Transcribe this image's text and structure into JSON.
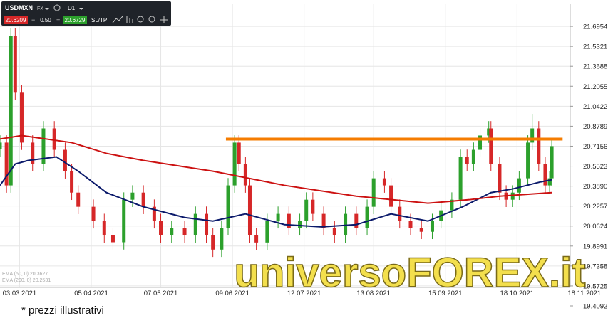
{
  "toolbar": {
    "symbol": "USDMXN",
    "market": "FX",
    "timeframe": "D1",
    "bid": "20.6209",
    "spread": "0.50",
    "ask": "20.6729",
    "sltp": "SL/TP"
  },
  "watermark": "universoFOREX.it",
  "footnote": "* prezzi illustrativi",
  "chart_data": {
    "type": "candlestick",
    "up_color": "#2ca02c",
    "down_color": "#d62728",
    "grid": true,
    "x": [
      -9,
      -6,
      -4,
      -2,
      1,
      6,
      11,
      16,
      21,
      24,
      27,
      34,
      39,
      43,
      48,
      52,
      57,
      62,
      65,
      70,
      76,
      81,
      86,
      89,
      93,
      96,
      99,
      101,
      104,
      106,
      109,
      114,
      119,
      124,
      129,
      132,
      135,
      140,
      145,
      150,
      155,
      160,
      163,
      168,
      171,
      175,
      180,
      185,
      190,
      194,
      199,
      203,
      206,
      209,
      212,
      216,
      217,
      221,
      224,
      227,
      230,
      234,
      236,
      239,
      242,
      244,
      245
    ],
    "open": [
      20.69,
      20.745,
      20.395,
      21.62,
      21.153,
      20.745,
      20.57,
      20.861,
      20.686,
      20.511,
      20.336,
      20.22,
      20.103,
      19.987,
      19.93,
      20.278,
      20.336,
      20.22,
      20.103,
      19.987,
      20.045,
      19.987,
      20.162,
      19.987,
      19.87,
      20.045,
      20.395,
      20.745,
      20.57,
      20.395,
      19.987,
      19.928,
      20.103,
      20.162,
      20.045,
      20.103,
      20.278,
      20.162,
      20.045,
      19.987,
      20.162,
      20.045,
      20.22,
      20.453,
      20.395,
      20.22,
      20.103,
      20.045,
      20.016,
      20.103,
      20.191,
      20.278,
      20.628,
      20.57,
      20.686,
      20.803,
      20.861,
      20.57,
      20.336,
      20.278,
      20.336,
      20.453,
      20.745,
      20.861,
      20.57,
      20.395,
      20.453
    ],
    "high": [
      20.805,
      20.805,
      21.68,
      21.68,
      21.213,
      20.805,
      20.921,
      20.921,
      20.746,
      20.571,
      20.396,
      20.28,
      20.163,
      20.047,
      20.338,
      20.396,
      20.396,
      20.28,
      20.163,
      20.105,
      20.105,
      20.222,
      20.222,
      20.047,
      20.105,
      20.455,
      20.805,
      20.805,
      20.63,
      20.455,
      20.047,
      20.163,
      20.222,
      20.222,
      20.163,
      20.338,
      20.338,
      20.222,
      20.105,
      20.222,
      20.222,
      20.28,
      20.513,
      20.513,
      20.455,
      20.28,
      20.163,
      20.105,
      20.163,
      20.251,
      20.338,
      20.688,
      20.688,
      20.746,
      20.863,
      20.921,
      20.921,
      20.63,
      20.396,
      20.396,
      20.513,
      20.805,
      20.98,
      20.921,
      20.63,
      20.513,
      20.776
    ],
    "low": [
      20.63,
      20.335,
      20.335,
      21.093,
      20.685,
      20.51,
      20.51,
      20.626,
      20.451,
      20.276,
      20.16,
      20.043,
      19.927,
      19.87,
      19.87,
      20.218,
      20.16,
      20.043,
      19.927,
      19.927,
      19.927,
      19.927,
      19.927,
      19.81,
      19.81,
      19.985,
      20.335,
      20.51,
      20.335,
      19.927,
      19.868,
      19.868,
      20.043,
      19.985,
      19.985,
      20.043,
      20.102,
      19.985,
      19.927,
      19.927,
      19.985,
      19.985,
      20.16,
      20.335,
      20.16,
      20.043,
      19.985,
      19.956,
      19.956,
      20.043,
      20.131,
      20.218,
      20.51,
      20.51,
      20.626,
      20.743,
      20.51,
      20.276,
      20.218,
      20.218,
      20.276,
      20.393,
      20.685,
      20.51,
      20.335,
      20.335,
      20.393
    ],
    "close": [
      20.745,
      20.395,
      21.62,
      21.153,
      20.745,
      20.57,
      20.861,
      20.686,
      20.511,
      20.336,
      20.22,
      20.103,
      19.987,
      19.93,
      20.278,
      20.336,
      20.22,
      20.103,
      19.987,
      20.045,
      19.987,
      20.162,
      19.987,
      19.87,
      20.045,
      20.395,
      20.745,
      20.57,
      20.395,
      19.987,
      19.928,
      20.103,
      20.162,
      20.045,
      20.103,
      20.278,
      20.162,
      20.045,
      19.987,
      20.162,
      20.045,
      20.22,
      20.453,
      20.395,
      20.22,
      20.103,
      20.045,
      20.016,
      20.103,
      20.191,
      20.278,
      20.628,
      20.57,
      20.686,
      20.803,
      20.861,
      20.57,
      20.336,
      20.278,
      20.336,
      20.453,
      20.745,
      20.861,
      20.57,
      20.395,
      20.453,
      20.716
    ],
    "series": [
      {
        "name": "EMA (50, 0) 20.3627",
        "color": "#0b1a6b",
        "x": [
          -9,
          -2,
          4,
          17,
          27,
          40,
          57,
          76,
          89,
          104,
          122,
          139,
          155,
          171,
          188,
          204,
          217,
          227,
          240,
          245
        ],
        "values": [
          20.395,
          20.57,
          20.599,
          20.628,
          20.511,
          20.336,
          20.22,
          20.132,
          20.103,
          20.162,
          20.074,
          20.056,
          20.074,
          20.162,
          20.103,
          20.22,
          20.336,
          20.366,
          20.424,
          20.441
        ]
      },
      {
        "name": "EMA (200, 0) 20.2531",
        "color": "#cc1111",
        "x": [
          -9,
          1,
          24,
          40,
          57,
          89,
          122,
          155,
          188,
          207,
          221,
          245
        ],
        "values": [
          20.774,
          20.803,
          20.745,
          20.657,
          20.599,
          20.511,
          20.395,
          20.307,
          20.249,
          20.278,
          20.307,
          20.336
        ]
      }
    ],
    "level": {
      "color": "#f57c00",
      "x": [
        95,
        250
      ],
      "values": [
        20.774,
        20.774
      ]
    },
    "xlim": [
      -9,
      253.5
    ],
    "xticks": [
      {
        "value": 0,
        "label": "03.03.2021"
      },
      {
        "value": 33,
        "label": "05.04.2021"
      },
      {
        "value": 65,
        "label": "07.05.2021"
      },
      {
        "value": 98,
        "label": "09.06.2021"
      },
      {
        "value": 131,
        "label": "12.07.2021"
      },
      {
        "value": 163,
        "label": "13.08.2021"
      },
      {
        "value": 196,
        "label": "15.09.2021"
      },
      {
        "value": 229,
        "label": "18.10.2021"
      },
      {
        "value": 260,
        "label": "18.11.2021"
      }
    ],
    "ylim": [
      19.351,
      21.853
    ],
    "yticks": [
      19.4092,
      19.5725,
      19.7358,
      19.8991,
      20.0624,
      20.2257,
      {
        "value": 20.389,
        "label": "20.3890"
      },
      20.5523,
      20.7156,
      20.8789,
      21.0422,
      21.2055,
      21.3688,
      21.5321,
      21.6954
    ]
  }
}
